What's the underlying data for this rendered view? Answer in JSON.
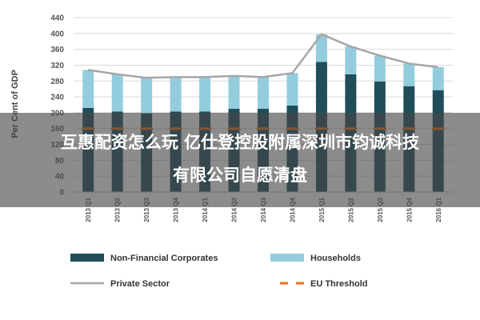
{
  "chart_data": {
    "type": "bar",
    "title": "",
    "ylabel": "Per Cent of GDP",
    "xlabel": "",
    "ylim": [
      0,
      440
    ],
    "yticks": [
      0,
      40,
      80,
      120,
      160,
      200,
      240,
      280,
      320,
      360,
      400,
      440
    ],
    "grid": true,
    "stacked": true,
    "categories": [
      "2013 Q1",
      "2013 Q2",
      "2013 Q3",
      "2013 Q4",
      "2014 Q1",
      "2014 Q2",
      "2014 Q3",
      "2014 Q4",
      "2015 Q1",
      "2015 Q2",
      "2015 Q3",
      "2015 Q4",
      "2016 Q1"
    ],
    "series": [
      {
        "name": "Non-Financial Corporates",
        "type": "bar",
        "color": "#1f4e5a",
        "values": [
          212,
          203,
          198,
          203,
          203,
          210,
          210,
          218,
          328,
          297,
          279,
          267,
          257
        ]
      },
      {
        "name": "Households",
        "type": "bar",
        "color": "#93cddd",
        "values": [
          96,
          94,
          90,
          87,
          87,
          83,
          80,
          82,
          70,
          70,
          65,
          57,
          58
        ]
      },
      {
        "name": "Private Sector",
        "type": "line",
        "color": "#a6a6a6",
        "values": [
          308,
          297,
          288,
          290,
          290,
          293,
          290,
          300,
          398,
          367,
          344,
          324,
          315
        ]
      },
      {
        "name": "EU Threshold",
        "type": "line",
        "dashed": true,
        "color": "#e8711c",
        "values": [
          160,
          160,
          160,
          160,
          160,
          160,
          160,
          160,
          160,
          160,
          160,
          160,
          160
        ]
      }
    ],
    "legend_placement": "bottom"
  },
  "overlay": {
    "line1": "互惠配资怎么玩 亿仕登控股附属深圳市钧诚科技",
    "line2": "有限公司自愿清盘"
  }
}
